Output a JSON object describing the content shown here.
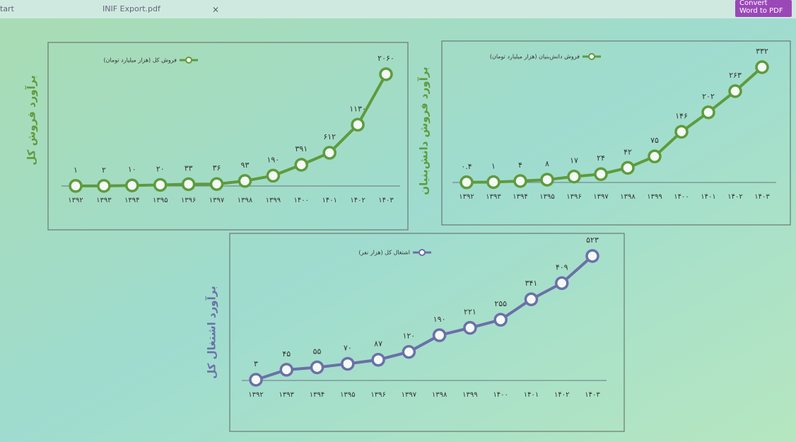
{
  "ui": {
    "tab_left": "tart",
    "tab_title": "INIF Export.pdf",
    "tab_close": "×",
    "button_line1": "Convert",
    "button_line2": "Word to PDF"
  },
  "chart_data": [
    {
      "type": "line",
      "y_axis_label": "برآورد فروش کل",
      "categories": [
        "۱۳۹۲",
        "۱۳۹۳",
        "۱۳۹۴",
        "۱۳۹۵",
        "۱۳۹۶",
        "۱۳۹۷",
        "۱۳۹۸",
        "۱۳۹۹",
        "۱۴۰۰",
        "۱۴۰۱",
        "۱۴۰۲",
        "۱۴۰۳"
      ],
      "series": [
        {
          "name": "فروش کل (هزار میلیارد تومان)",
          "color": "#5e9b3c",
          "values": [
            1,
            2,
            10,
            20,
            33,
            36,
            93,
            190,
            391,
            612,
            1130,
            2060
          ],
          "value_labels": [
            "۱",
            "۲",
            "۱۰",
            "۲۰",
            "۳۳",
            "۳۶",
            "۹۳",
            "۱۹۰",
            "۳۹۱",
            "۶۱۲",
            "۱۱۳۰",
            "۲۰۶۰"
          ]
        }
      ]
    },
    {
      "type": "line",
      "y_axis_label": "برآورد فروش دانش‌بنیان",
      "categories": [
        "۱۳۹۲",
        "۱۳۹۳",
        "۱۳۹۴",
        "۱۳۹۵",
        "۱۳۹۶",
        "۱۳۹۷",
        "۱۳۹۸",
        "۱۳۹۹",
        "۱۴۰۰",
        "۱۴۰۱",
        "۱۴۰۲",
        "۱۴۰۳"
      ],
      "series": [
        {
          "name": "فروش دانش‌بنیان (هزار میلیارد تومان)",
          "color": "#5e9b3c",
          "values": [
            0.4,
            1,
            4,
            8,
            17,
            24,
            42,
            75,
            146,
            202,
            263,
            332
          ],
          "value_labels": [
            "۰.۴",
            "۱",
            "۴",
            "۸",
            "۱۷",
            "۲۴",
            "۴۲",
            "۷۵",
            "۱۴۶",
            "۲۰۲",
            "۲۶۳",
            "۳۳۲"
          ]
        }
      ]
    },
    {
      "type": "line",
      "y_axis_label": "برآورد اشتغال کل",
      "categories": [
        "۱۳۹۲",
        "۱۳۹۳",
        "۱۳۹۴",
        "۱۳۹۵",
        "۱۳۹۶",
        "۱۳۹۷",
        "۱۳۹۸",
        "۱۳۹۹",
        "۱۴۰۰",
        "۱۴۰۱",
        "۱۴۰۲",
        "۱۴۰۳"
      ],
      "series": [
        {
          "name": "اشتغال کل (هزار نفر)",
          "color": "#6b70a8",
          "values": [
            3,
            45,
            55,
            70,
            87,
            120,
            190,
            221,
            255,
            341,
            409,
            523
          ],
          "value_labels": [
            "۳",
            "۴۵",
            "۵۵",
            "۷۰",
            "۸۷",
            "۱۲۰",
            "۱۹۰",
            "۲۲۱",
            "۲۵۵",
            "۳۴۱",
            "۴۰۹",
            "۵۲۳"
          ]
        }
      ]
    }
  ]
}
